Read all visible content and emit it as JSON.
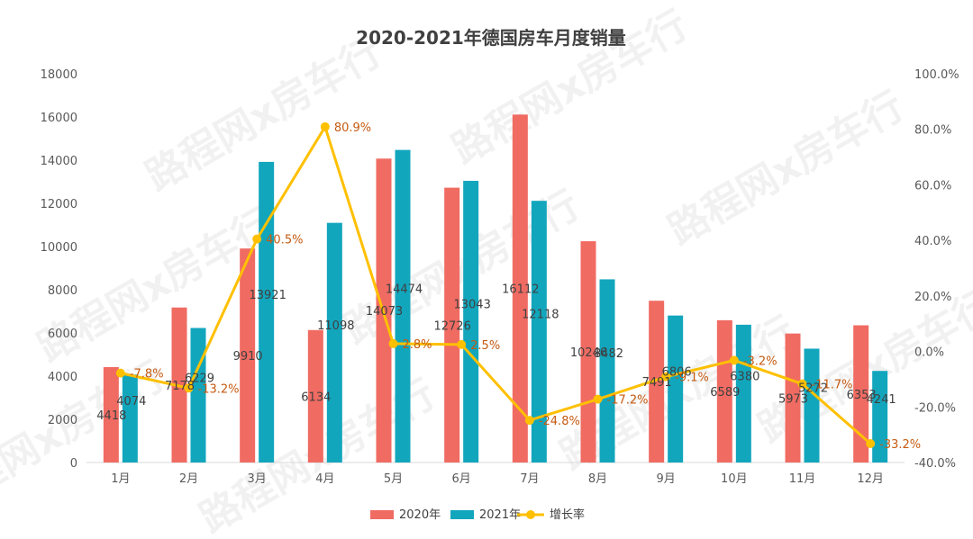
{
  "chart_data": {
    "type": "bar",
    "title": "2020-2021年德国房车月度销量",
    "categories": [
      "1月",
      "2月",
      "3月",
      "4月",
      "5月",
      "6月",
      "7月",
      "8月",
      "9月",
      "10月",
      "11月",
      "12月"
    ],
    "series": [
      {
        "name": "2020年",
        "type": "bar",
        "color": "#f06b62",
        "axis": "left",
        "values": [
          4418,
          7178,
          9910,
          6134,
          14073,
          12726,
          16112,
          10246,
          7491,
          6589,
          5973,
          6353
        ],
        "labels": [
          "4418",
          "7178",
          "9910",
          "6134",
          "14073",
          "12726",
          "16112",
          "10246",
          "7491",
          "6589",
          "5973",
          "6353"
        ]
      },
      {
        "name": "2021年",
        "type": "bar",
        "color": "#12a6bd",
        "axis": "left",
        "values": [
          4074,
          6229,
          13921,
          11098,
          14474,
          13043,
          12118,
          8482,
          6806,
          6380,
          5272,
          4241
        ],
        "labels": [
          "4074",
          "6229",
          "13921",
          "11098",
          "14474",
          "13043",
          "12118",
          "8482",
          "6806",
          "6380",
          "5272",
          "4241"
        ]
      },
      {
        "name": "增长率",
        "type": "line",
        "color": "#ffc000",
        "axis": "right",
        "values": [
          -7.8,
          -13.2,
          40.5,
          80.9,
          2.8,
          2.5,
          -24.8,
          -17.2,
          -9.1,
          -3.2,
          -11.7,
          -33.2
        ],
        "labels": [
          "-7.8%",
          "-13.2%",
          "40.5%",
          "80.9%",
          "2.8%",
          "2.5%",
          "-24.8%",
          "-17.2%",
          "-9.1%",
          "-3.2%",
          "-11.7%",
          "-33.2%"
        ]
      }
    ],
    "y_left": {
      "min": 0,
      "max": 18000,
      "ticks": [
        "0",
        "2000",
        "4000",
        "6000",
        "8000",
        "10000",
        "12000",
        "14000",
        "16000",
        "18000"
      ]
    },
    "y_right": {
      "min": -40,
      "max": 100,
      "ticks": [
        "-40.0%",
        "-20.0%",
        "0.0%",
        "20.0%",
        "40.0%",
        "60.0%",
        "80.0%",
        "100.0%"
      ]
    },
    "legend": "bottom-center",
    "grid": false
  },
  "watermark": "路程网x房车行"
}
